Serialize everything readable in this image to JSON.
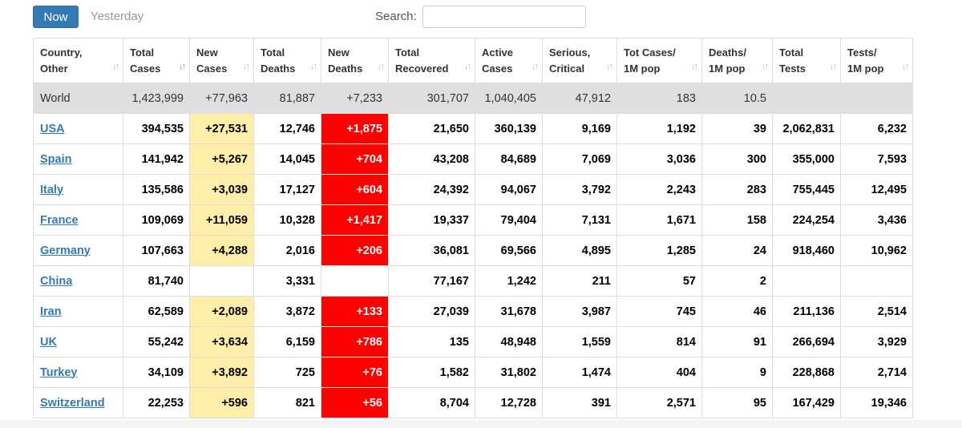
{
  "toolbar": {
    "now_label": "Now",
    "yesterday_label": "Yesterday",
    "search_label": "Search:",
    "search_value": ""
  },
  "columns": [
    {
      "line1": "Country,",
      "line2": "Other"
    },
    {
      "line1": "Total",
      "line2": "Cases"
    },
    {
      "line1": "New",
      "line2": "Cases"
    },
    {
      "line1": "Total",
      "line2": "Deaths"
    },
    {
      "line1": "New",
      "line2": "Deaths"
    },
    {
      "line1": "Total",
      "line2": "Recovered"
    },
    {
      "line1": "Active",
      "line2": "Cases"
    },
    {
      "line1": "Serious,",
      "line2": "Critical"
    },
    {
      "line1": "Tot Cases/",
      "line2": "1M pop"
    },
    {
      "line1": "Deaths/",
      "line2": "1M pop"
    },
    {
      "line1": "Total",
      "line2": "Tests"
    },
    {
      "line1": "Tests/",
      "line2": "1M pop"
    }
  ],
  "world": [
    "World",
    "1,423,999",
    "+77,963",
    "81,887",
    "+7,233",
    "301,707",
    "1,040,405",
    "47,912",
    "183",
    "10.5",
    "",
    ""
  ],
  "rows": [
    [
      "USA",
      "394,535",
      "+27,531",
      "12,746",
      "+1,875",
      "21,650",
      "360,139",
      "9,169",
      "1,192",
      "39",
      "2,062,831",
      "6,232"
    ],
    [
      "Spain",
      "141,942",
      "+5,267",
      "14,045",
      "+704",
      "43,208",
      "84,689",
      "7,069",
      "3,036",
      "300",
      "355,000",
      "7,593"
    ],
    [
      "Italy",
      "135,586",
      "+3,039",
      "17,127",
      "+604",
      "24,392",
      "94,067",
      "3,792",
      "2,243",
      "283",
      "755,445",
      "12,495"
    ],
    [
      "France",
      "109,069",
      "+11,059",
      "10,328",
      "+1,417",
      "19,337",
      "79,404",
      "7,131",
      "1,671",
      "158",
      "224,254",
      "3,436"
    ],
    [
      "Germany",
      "107,663",
      "+4,288",
      "2,016",
      "+206",
      "36,081",
      "69,566",
      "4,895",
      "1,285",
      "24",
      "918,460",
      "10,962"
    ],
    [
      "China",
      "81,740",
      "",
      "3,331",
      "",
      "77,167",
      "1,242",
      "211",
      "57",
      "2",
      "",
      ""
    ],
    [
      "Iran",
      "62,589",
      "+2,089",
      "3,872",
      "+133",
      "27,039",
      "31,678",
      "3,987",
      "745",
      "46",
      "211,136",
      "2,514"
    ],
    [
      "UK",
      "55,242",
      "+3,634",
      "6,159",
      "+786",
      "135",
      "48,948",
      "1,559",
      "814",
      "91",
      "266,694",
      "3,929"
    ],
    [
      "Turkey",
      "34,109",
      "+3,892",
      "725",
      "+76",
      "1,582",
      "31,802",
      "1,474",
      "404",
      "9",
      "228,868",
      "2,714"
    ],
    [
      "Switzerland",
      "22,253",
      "+596",
      "821",
      "+56",
      "8,704",
      "12,728",
      "391",
      "2,571",
      "95",
      "167,429",
      "19,346"
    ]
  ],
  "colors": {
    "accent": "#337ab7",
    "new_cases_bg": "#ffeeaa",
    "new_deaths_bg": "#ff0000",
    "world_row_bg": "#dfdfdf"
  }
}
